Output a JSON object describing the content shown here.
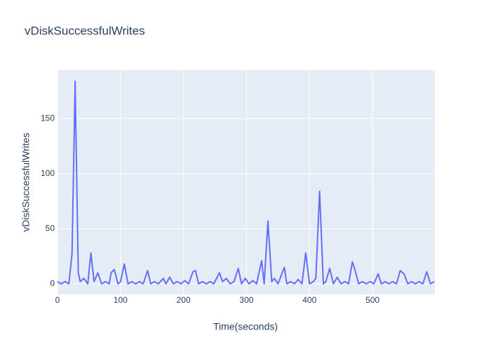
{
  "chart_data": {
    "type": "line",
    "title": "vDiskSuccessfulWrites",
    "x_label": "Time(seconds)",
    "y_label": "vDiskSuccessfulWrites",
    "x": [
      0,
      6,
      12,
      18,
      23,
      28,
      29,
      33,
      36,
      42,
      48,
      53,
      58,
      64,
      70,
      76,
      82,
      85,
      90,
      96,
      100,
      106,
      112,
      118,
      124,
      130,
      136,
      143,
      148,
      154,
      160,
      168,
      172,
      178,
      184,
      190,
      196,
      202,
      208,
      215,
      219,
      224,
      230,
      236,
      242,
      248,
      257,
      262,
      268,
      274,
      280,
      287,
      292,
      298,
      304,
      310,
      316,
      324,
      328,
      334,
      340,
      344,
      350,
      360,
      364,
      370,
      376,
      382,
      388,
      394,
      400,
      406,
      410,
      416,
      422,
      426,
      432,
      438,
      444,
      450,
      456,
      462,
      468,
      472,
      478,
      484,
      490,
      496,
      502,
      509,
      514,
      520,
      526,
      532,
      538,
      544,
      550,
      556,
      562,
      568,
      574,
      580,
      586,
      592,
      598
    ],
    "series": [
      {
        "color": "#636efa",
        "values": [
          2,
          0,
          2,
          0,
          27,
          184,
          145,
          10,
          2,
          5,
          0,
          28,
          2,
          10,
          0,
          2,
          0,
          10,
          13,
          0,
          2,
          18,
          0,
          2,
          0,
          2,
          0,
          12,
          0,
          2,
          0,
          5,
          0,
          6,
          0,
          2,
          0,
          3,
          0,
          11,
          12,
          0,
          2,
          0,
          2,
          0,
          10,
          2,
          5,
          0,
          2,
          14,
          0,
          5,
          0,
          3,
          0,
          21,
          0,
          57,
          2,
          5,
          0,
          15,
          0,
          2,
          0,
          4,
          0,
          28,
          0,
          2,
          5,
          84,
          0,
          2,
          14,
          0,
          6,
          0,
          2,
          0,
          20,
          13,
          0,
          2,
          0,
          2,
          0,
          9,
          0,
          2,
          0,
          2,
          0,
          12,
          9,
          0,
          2,
          0,
          2,
          0,
          11,
          0,
          2
        ]
      }
    ],
    "xlim": [
      0,
      599
    ],
    "ylim": [
      -9.6,
      194
    ],
    "xticks": [
      0,
      100,
      200,
      300,
      400,
      500
    ],
    "yticks": [
      0,
      50,
      100,
      150
    ],
    "grid": true
  }
}
